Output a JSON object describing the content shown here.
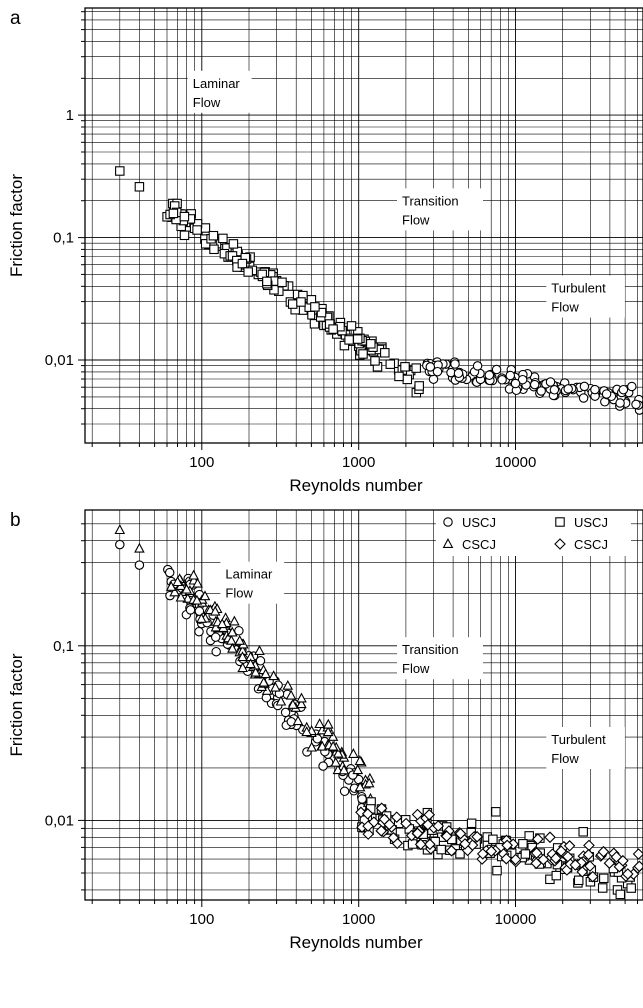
{
  "chart_data": [
    {
      "panel": "a",
      "type": "scatter",
      "title": "",
      "xlabel": "Reynolds number",
      "ylabel": "Friction factor",
      "x_scale": "log",
      "y_scale": "log",
      "xlim": [
        18,
        65000
      ],
      "ylim": [
        0.0021,
        7.5
      ],
      "grid": true,
      "x_ticks": [
        {
          "value": 100,
          "label": "100"
        },
        {
          "value": 1000,
          "label": "1000"
        },
        {
          "value": 10000,
          "label": "10000"
        }
      ],
      "y_ticks": [
        {
          "value": 1,
          "label": "1"
        },
        {
          "value": 0.1,
          "label": "0,1"
        },
        {
          "value": 0.01,
          "label": "0,01"
        }
      ],
      "regions": [
        {
          "lines": [
            "Laminar",
            "Flow"
          ],
          "x": 130,
          "y": 1.55
        },
        {
          "lines": [
            "Transition",
            "Flow"
          ],
          "x": 3300,
          "y": 0.17
        },
        {
          "lines": [
            "Turbulent",
            "Flow"
          ],
          "x": 28000,
          "y": 0.033
        }
      ],
      "series": [
        {
          "marker": "square",
          "segments": [
            {
              "x": [
                30,
                40
              ],
              "y": [
                0.35,
                0.26
              ]
            },
            {
              "xrange": [
                60,
                2500
              ],
              "ystart": 0.17,
              "yend": 0.0062,
              "n": 170,
              "spread": 0.12,
              "seed": 11
            }
          ]
        },
        {
          "marker": "circle",
          "segments": [
            {
              "xrange": [
                2500,
                62000
              ],
              "ystart": 0.0088,
              "yend": 0.0048,
              "n": 130,
              "spread": 0.1,
              "seed": 23
            }
          ]
        }
      ]
    },
    {
      "panel": "b",
      "type": "scatter",
      "title": "",
      "xlabel": "Reynolds number",
      "ylabel": "Friction factor",
      "x_scale": "log",
      "y_scale": "log",
      "xlim": [
        18,
        65000
      ],
      "ylim": [
        0.0035,
        0.6
      ],
      "grid": true,
      "x_ticks": [
        {
          "value": 100,
          "label": "100"
        },
        {
          "value": 1000,
          "label": "1000"
        },
        {
          "value": 10000,
          "label": "10000"
        }
      ],
      "y_ticks": [
        {
          "value": 0.1,
          "label": "0,1"
        },
        {
          "value": 0.01,
          "label": "0,01"
        }
      ],
      "regions": [
        {
          "lines": [
            "Laminar",
            "Flow"
          ],
          "x": 210,
          "y": 0.23
        },
        {
          "lines": [
            "Transition",
            "Flow"
          ],
          "x": 3300,
          "y": 0.085
        },
        {
          "lines": [
            "Turbulent",
            "Flow"
          ],
          "x": 28000,
          "y": 0.026
        }
      ],
      "legend": {
        "placement": "top-right",
        "entries": [
          {
            "marker": "circle",
            "name": "USCJ"
          },
          {
            "marker": "square",
            "name": "USCJ"
          },
          {
            "marker": "triangle",
            "name": "CSCJ"
          },
          {
            "marker": "diamond",
            "name": "CSCJ"
          }
        ]
      },
      "series": [
        {
          "marker": "circle",
          "segments": [
            {
              "x": [
                30,
                40
              ],
              "y": [
                0.38,
                0.29
              ]
            },
            {
              "xrange": [
                60,
                1100
              ],
              "ystart": 0.27,
              "yend": 0.013,
              "n": 110,
              "spread": 0.16,
              "seed": 31
            }
          ]
        },
        {
          "marker": "triangle",
          "segments": [
            {
              "x": [
                30,
                40
              ],
              "y": [
                0.46,
                0.36
              ]
            },
            {
              "xrange": [
                60,
                1200
              ],
              "ystart": 0.28,
              "yend": 0.015,
              "n": 110,
              "spread": 0.14,
              "seed": 37
            }
          ]
        },
        {
          "marker": "square",
          "segments": [
            {
              "xrange": [
                1000,
                55000
              ],
              "ystart": 0.0105,
              "yend": 0.0045,
              "n": 110,
              "spread": 0.13,
              "seed": 41
            },
            {
              "x": [
                7500,
                27000
              ],
              "y": [
                0.0112,
                0.0086
              ]
            }
          ]
        },
        {
          "marker": "diamond",
          "segments": [
            {
              "xrange": [
                1000,
                62000
              ],
              "ystart": 0.0102,
              "yend": 0.0052,
              "n": 110,
              "spread": 0.12,
              "seed": 53
            }
          ]
        }
      ]
    }
  ]
}
